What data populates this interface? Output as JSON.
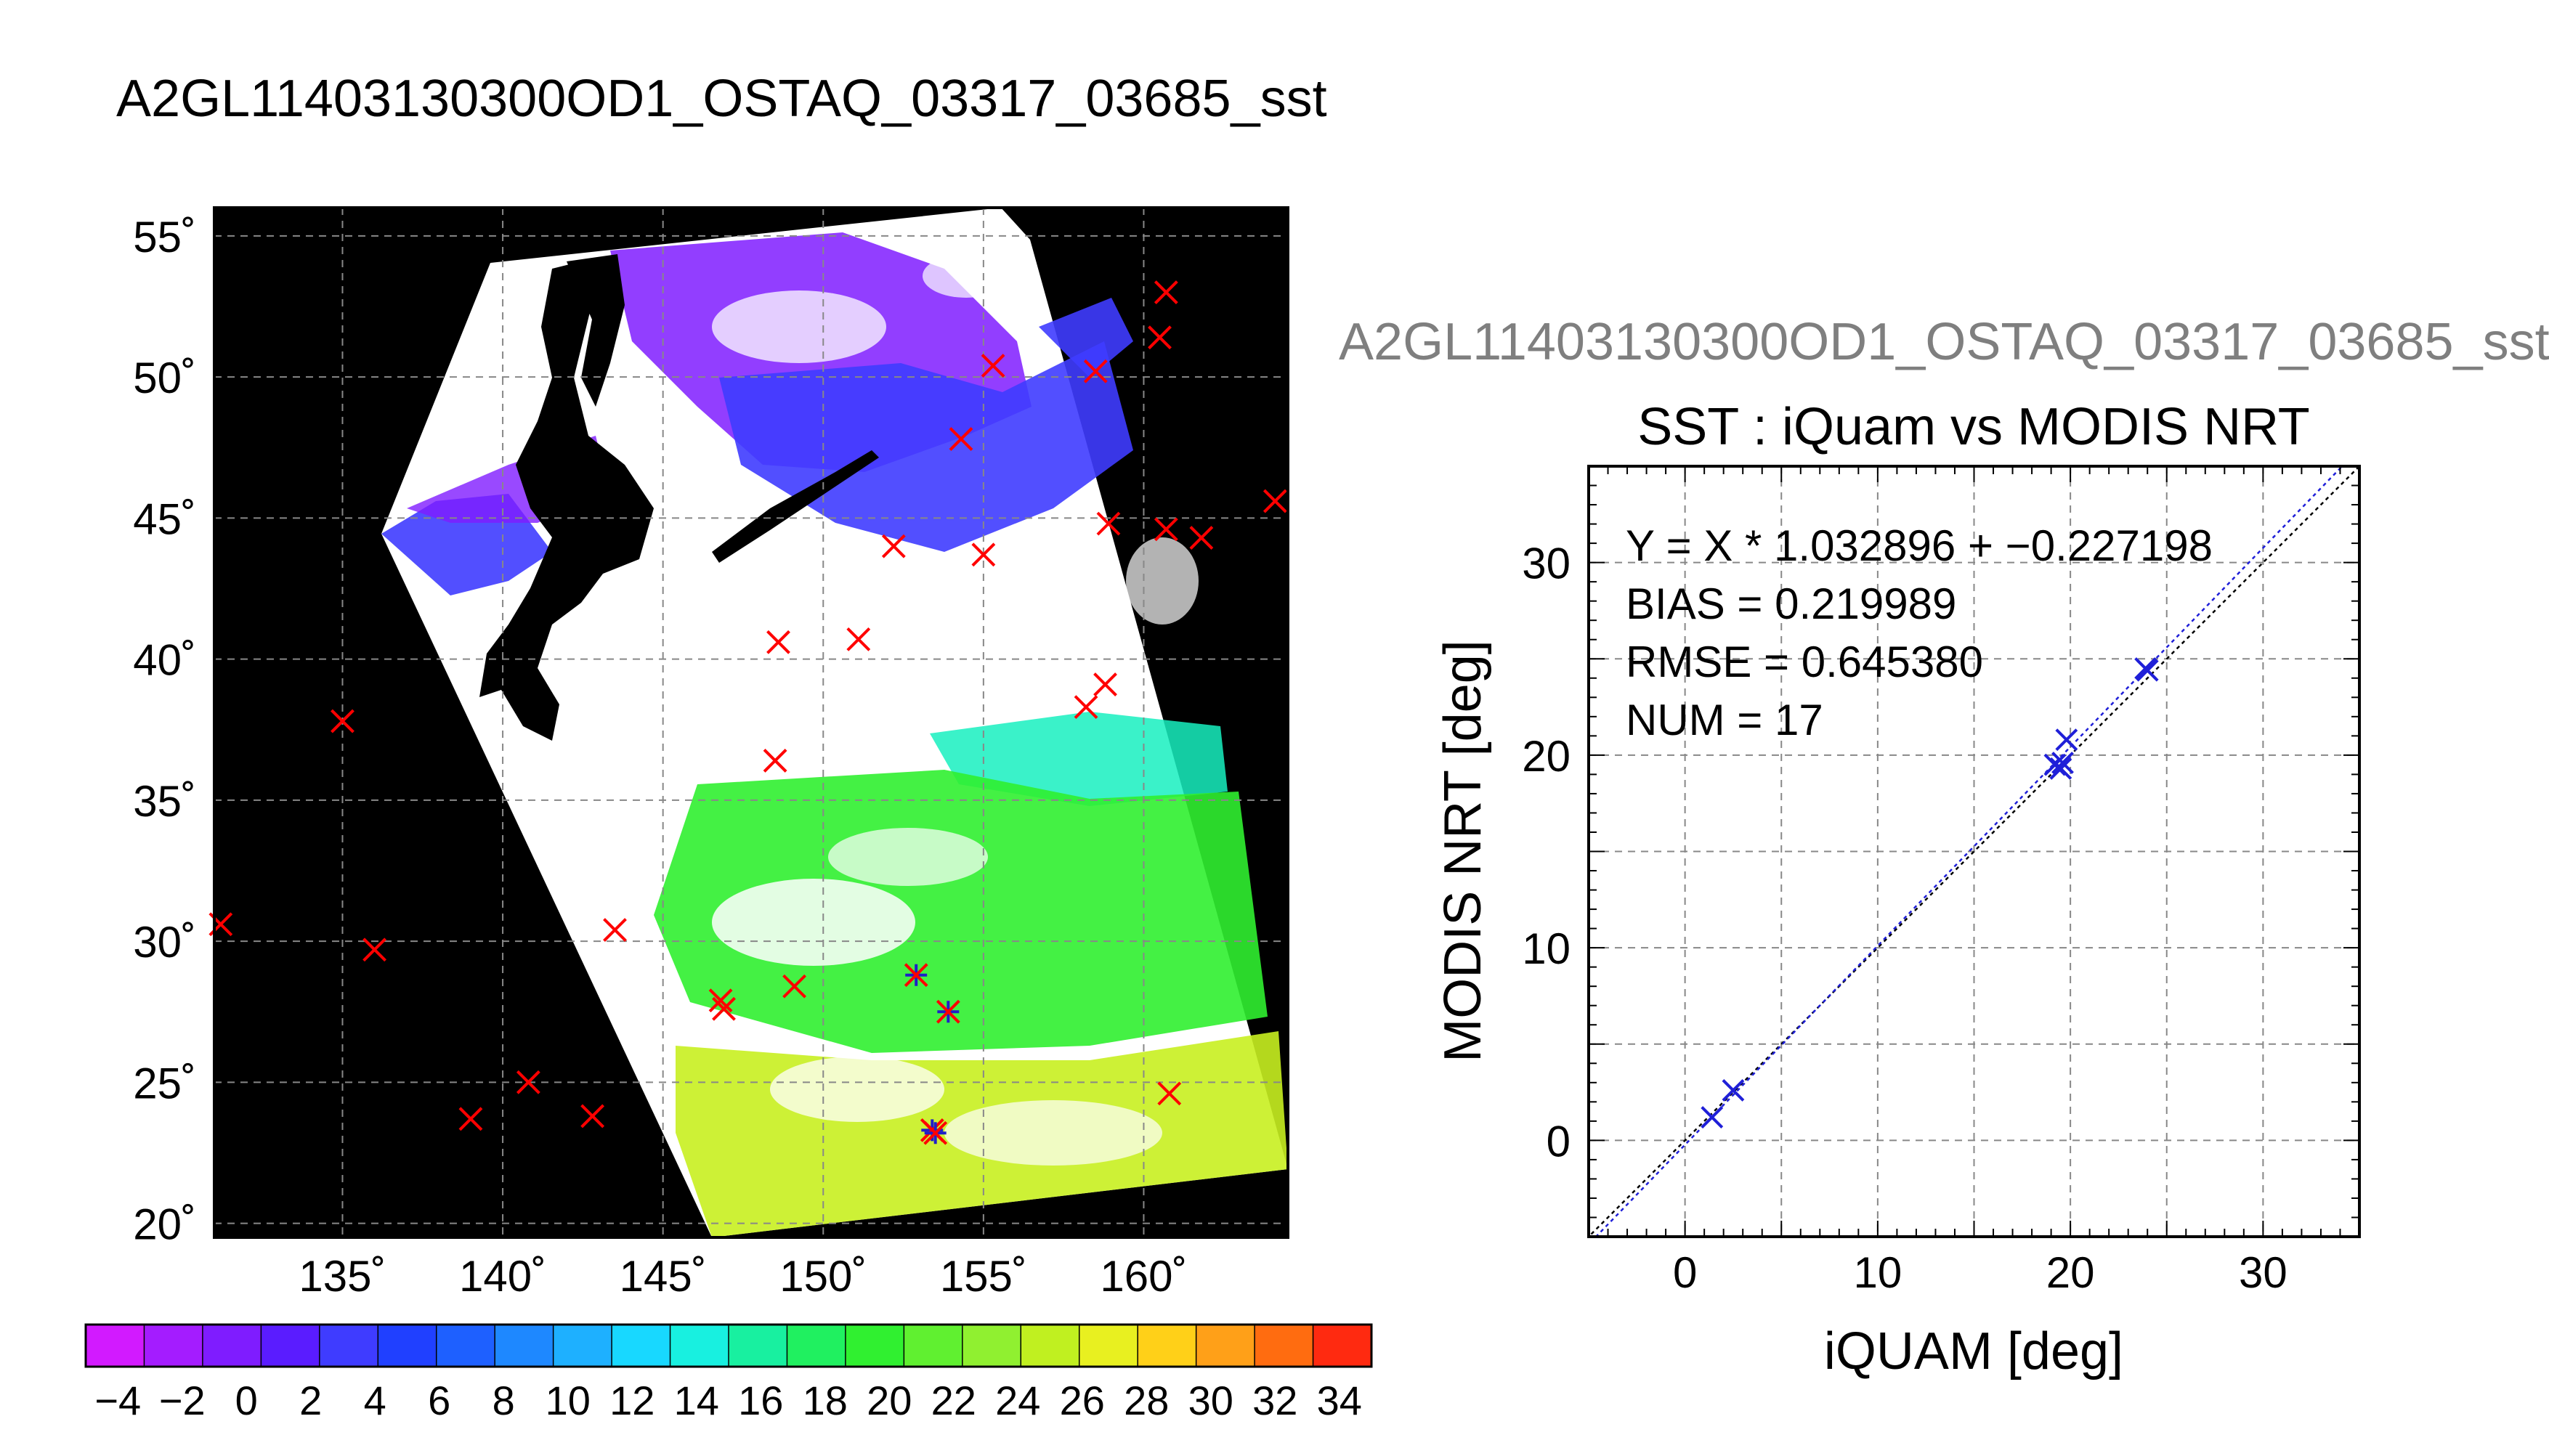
{
  "page": {
    "main_title": "A2GL11403130300OD1_OSTAQ_03317_03685_sst",
    "subtitle": "A2GL11403130300OD1_OSTAQ_03317_03685_sst"
  },
  "chart_data": [
    {
      "type": "map",
      "xlabel": "",
      "ylabel": "",
      "xlim": [
        131,
        164.5
      ],
      "ylim": [
        19.5,
        56
      ],
      "x_ticks": [
        135,
        140,
        145,
        150,
        155,
        160
      ],
      "x_tick_labels": [
        "135˚",
        "140˚",
        "145˚",
        "150˚",
        "155˚",
        "160˚"
      ],
      "y_ticks": [
        20,
        25,
        30,
        35,
        40,
        45,
        50,
        55
      ],
      "y_tick_labels": [
        "20˚",
        "25˚",
        "30˚",
        "35˚",
        "40˚",
        "45˚",
        "50˚",
        "55˚"
      ],
      "grid": true,
      "background": "#000000",
      "swath_colors": {
        "cloud": "#ffffff",
        "cold": "#7f1cff",
        "cool": "#3f3cff",
        "warm": "#18f0c0",
        "warmer": "#30f030",
        "warmest": "#c8f020"
      },
      "markers": {
        "color_unmatched": "#ff0000",
        "color_matched": "#1f1fc8",
        "points_red": [
          [
            135,
            37.8
          ],
          [
            131.2,
            30.6
          ],
          [
            136,
            29.7
          ],
          [
            139,
            23.7
          ],
          [
            140.8,
            25
          ],
          [
            142.8,
            23.8
          ],
          [
            143.5,
            30.4
          ],
          [
            146.8,
            27.9
          ],
          [
            146.9,
            27.6
          ],
          [
            149.1,
            28.4
          ],
          [
            148.5,
            36.4
          ],
          [
            148.6,
            40.6
          ],
          [
            151.1,
            40.7
          ],
          [
            152.2,
            44
          ],
          [
            155,
            43.7
          ],
          [
            154.3,
            47.8
          ],
          [
            155.3,
            50.4
          ],
          [
            158.5,
            50.2
          ],
          [
            158.2,
            38.3
          ],
          [
            158.8,
            39.1
          ],
          [
            158.9,
            44.8
          ],
          [
            160.5,
            51.4
          ],
          [
            160.7,
            53
          ],
          [
            160.7,
            44.6
          ],
          [
            161.8,
            44.3
          ],
          [
            164.1,
            45.6
          ],
          [
            160.8,
            24.6
          ]
        ],
        "points_matched": [
          [
            152.9,
            28.8
          ],
          [
            153.9,
            27.5
          ],
          [
            153.4,
            23.3
          ],
          [
            153.5,
            23.2
          ]
        ]
      },
      "colorbar": {
        "min": -5,
        "max": 35,
        "step": 2,
        "tick_labels": [
          "−4",
          "−2",
          "0",
          "2",
          "4",
          "6",
          "8",
          "10",
          "12",
          "14",
          "16",
          "18",
          "20",
          "22",
          "24",
          "26",
          "28",
          "30",
          "32",
          "34"
        ],
        "colors": [
          "#d21aff",
          "#a41cff",
          "#7f1cff",
          "#5a1cff",
          "#3f3cff",
          "#2040ff",
          "#1e60ff",
          "#1e88ff",
          "#1eb0ff",
          "#18d8ff",
          "#18f0e0",
          "#18f0a0",
          "#20f060",
          "#30f030",
          "#60f030",
          "#90f030",
          "#c0f020",
          "#e8f020",
          "#ffd018",
          "#ffa018",
          "#ff6c10",
          "#ff2a10"
        ]
      }
    },
    {
      "type": "scatter",
      "title": "SST : iQuam vs MODIS NRT",
      "xlabel": "iQUAM [deg]",
      "ylabel": "MODIS NRT [deg]",
      "xlim": [
        -5,
        35
      ],
      "ylim": [
        -5,
        35
      ],
      "x_ticks": [
        0,
        10,
        20,
        30
      ],
      "y_ticks": [
        0,
        10,
        20,
        30
      ],
      "grid": true,
      "point_color": "#1f1fd8",
      "points": [
        {
          "x": 1.4,
          "y": 1.2
        },
        {
          "x": 2.5,
          "y": 2.6
        },
        {
          "x": 19.2,
          "y": 19.5
        },
        {
          "x": 19.5,
          "y": 19.3
        },
        {
          "x": 19.8,
          "y": 20.8
        },
        {
          "x": 19.6,
          "y": 19.6
        },
        {
          "x": 23.9,
          "y": 24.5
        },
        {
          "x": 24.0,
          "y": 24.4
        }
      ],
      "lines": [
        {
          "name": "",
          "type": "identity",
          "slope": 1.0,
          "intercept": 0.0,
          "color": "#000000"
        },
        {
          "name": "",
          "type": "regression",
          "slope": 1.032896,
          "intercept": -0.227198,
          "color": "#1f1fd8"
        }
      ],
      "annotations": [
        "Y = X * 1.032896 + −0.227198",
        "BIAS = 0.219989",
        "RMSE = 0.645380",
        "NUM = 17"
      ]
    }
  ]
}
